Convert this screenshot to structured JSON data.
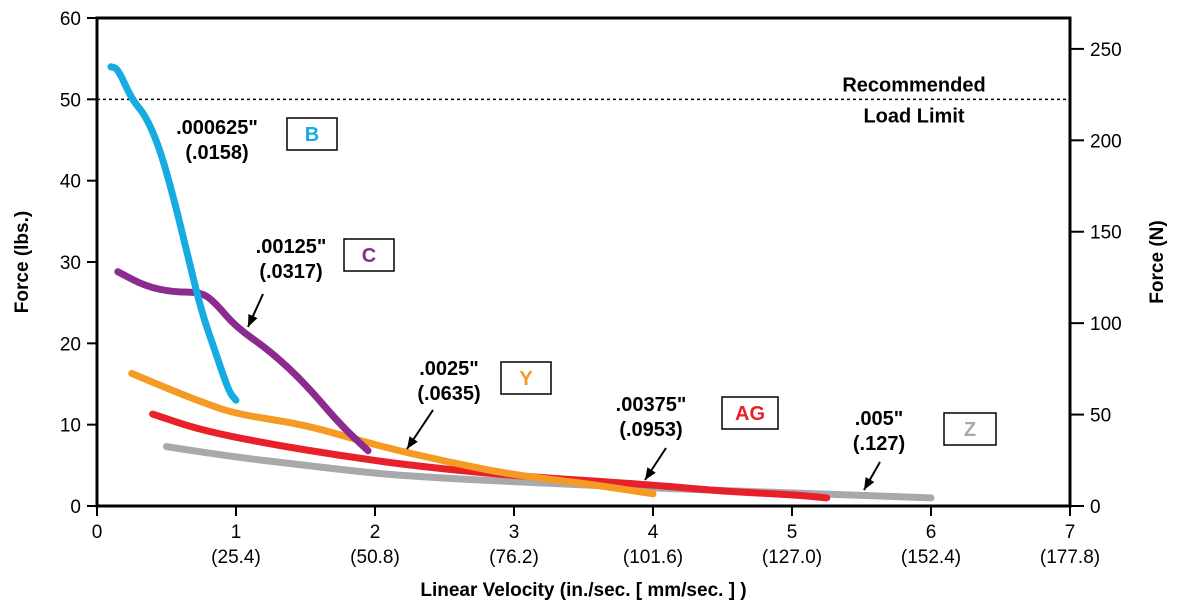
{
  "chart_data": {
    "type": "line",
    "xlabel": "Linear Velocity  (in./sec. [ mm/sec. ] )",
    "ylabel": "Force (lbs.)",
    "y2label": "Force (N)",
    "xlim": [
      0,
      7
    ],
    "ylim": [
      0,
      60
    ],
    "y2lim": [
      0,
      266.9
    ],
    "grid": false,
    "x_ticks": [
      {
        "value": 0,
        "label": "0",
        "sub": ""
      },
      {
        "value": 1,
        "label": "1",
        "sub": "(25.4)"
      },
      {
        "value": 2,
        "label": "2",
        "sub": "(50.8)"
      },
      {
        "value": 3,
        "label": "3",
        "sub": "(76.2)"
      },
      {
        "value": 4,
        "label": "4",
        "sub": "(101.6)"
      },
      {
        "value": 5,
        "label": "5",
        "sub": "(127.0)"
      },
      {
        "value": 6,
        "label": "6",
        "sub": "(152.4)"
      },
      {
        "value": 7,
        "label": "7",
        "sub": "(177.8)"
      }
    ],
    "y_ticks": [
      0,
      10,
      20,
      30,
      40,
      50,
      60
    ],
    "y2_ticks": [
      0,
      50,
      100,
      150,
      200,
      250
    ],
    "reference_line": {
      "y": 50,
      "label_lines": [
        "Recommended",
        "Load Limit"
      ]
    },
    "series": [
      {
        "name": "B",
        "color": "#16ace2",
        "label_lines": [
          ".000625\"",
          "(.0158)"
        ],
        "points": [
          [
            0.1,
            54
          ],
          [
            0.15,
            53.8
          ],
          [
            0.25,
            50
          ],
          [
            0.35,
            48
          ],
          [
            0.45,
            44
          ],
          [
            0.55,
            38
          ],
          [
            0.65,
            31
          ],
          [
            0.75,
            24
          ],
          [
            0.85,
            19
          ],
          [
            0.95,
            14
          ],
          [
            1.0,
            13
          ]
        ]
      },
      {
        "name": "C",
        "color": "#8b2a8f",
        "label_lines": [
          ".00125\"",
          "(.0317)"
        ],
        "points": [
          [
            0.15,
            28.8
          ],
          [
            0.35,
            27
          ],
          [
            0.55,
            26.3
          ],
          [
            0.75,
            26.3
          ],
          [
            0.85,
            25
          ],
          [
            1.0,
            22
          ],
          [
            1.25,
            19
          ],
          [
            1.5,
            15
          ],
          [
            1.75,
            10
          ],
          [
            1.95,
            6.8
          ]
        ]
      },
      {
        "name": "Y",
        "color": "#f59a23",
        "label_lines": [
          ".0025\"",
          "(.0635)"
        ],
        "points": [
          [
            0.25,
            16.3
          ],
          [
            0.5,
            14.5
          ],
          [
            0.75,
            12.8
          ],
          [
            1.0,
            11.3
          ],
          [
            1.5,
            10
          ],
          [
            2.0,
            7.5
          ],
          [
            2.5,
            5.5
          ],
          [
            3.0,
            3.8
          ],
          [
            3.5,
            2.8
          ],
          [
            4.0,
            1.5
          ]
        ]
      },
      {
        "name": "AG",
        "color": "#e8202a",
        "label_lines": [
          ".00375\"",
          "(.0953)"
        ],
        "points": [
          [
            0.4,
            11.3
          ],
          [
            0.75,
            9.3
          ],
          [
            1.25,
            7.6
          ],
          [
            1.75,
            6.2
          ],
          [
            2.25,
            5
          ],
          [
            3.0,
            3.7
          ],
          [
            4.0,
            2.6
          ],
          [
            4.5,
            1.8
          ],
          [
            5.0,
            1.4
          ],
          [
            5.25,
            1.0
          ]
        ]
      },
      {
        "name": "Z",
        "color": "#a7a9ac",
        "label_lines": [
          ".005\"",
          "(.127)"
        ],
        "points": [
          [
            0.5,
            7.3
          ],
          [
            1.0,
            6.0
          ],
          [
            1.5,
            5.0
          ],
          [
            2.0,
            4.0
          ],
          [
            2.5,
            3.4
          ],
          [
            3.0,
            3.0
          ],
          [
            4.0,
            2.2
          ],
          [
            5.0,
            1.6
          ],
          [
            6.0,
            1.0
          ]
        ]
      }
    ]
  }
}
